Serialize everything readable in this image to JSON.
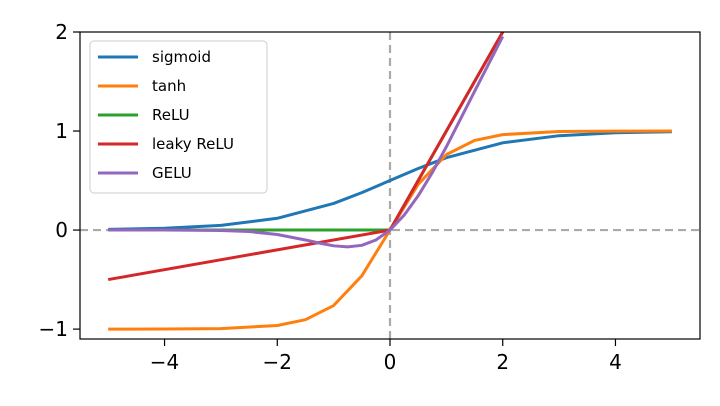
{
  "chart_data": {
    "type": "line",
    "xlim": [
      -5.5,
      5.5
    ],
    "ylim": [
      -1.1,
      2.0
    ],
    "x_ticks": [
      -4,
      -2,
      0,
      2,
      4
    ],
    "x_tick_labels": [
      "−4",
      "−2",
      "0",
      "2",
      "4"
    ],
    "y_ticks": [
      -1,
      0,
      1,
      2
    ],
    "y_tick_labels": [
      "−1",
      "0",
      "1",
      "2"
    ],
    "grid": false,
    "legend_position": "top-left",
    "reference_lines": [
      {
        "orientation": "horizontal",
        "value": 0,
        "style": "dashed",
        "color": "#aaaaaa"
      },
      {
        "orientation": "vertical",
        "value": 0,
        "style": "dashed",
        "color": "#aaaaaa"
      }
    ],
    "series": [
      {
        "name": "sigmoid",
        "color": "#1f77b4",
        "x": [
          -5,
          -4,
          -3,
          -2,
          -1,
          -0.5,
          0,
          0.5,
          1,
          2,
          3,
          4,
          5
        ],
        "y": [
          0.007,
          0.018,
          0.047,
          0.119,
          0.269,
          0.378,
          0.5,
          0.622,
          0.731,
          0.881,
          0.953,
          0.982,
          0.993
        ]
      },
      {
        "name": "tanh",
        "color": "#ff7f0e",
        "x": [
          -5,
          -4,
          -3,
          -2,
          -1.5,
          -1,
          -0.5,
          0,
          0.5,
          1,
          1.5,
          2,
          3,
          4,
          5
        ],
        "y": [
          -1.0,
          -0.999,
          -0.995,
          -0.964,
          -0.905,
          -0.762,
          -0.462,
          0,
          0.462,
          0.762,
          0.905,
          0.964,
          0.995,
          0.999,
          1.0
        ]
      },
      {
        "name": "ReLU",
        "color": "#2ca02c",
        "x": [
          -5,
          0,
          2
        ],
        "y": [
          0,
          0,
          2
        ]
      },
      {
        "name": "leaky ReLU",
        "color": "#d62728",
        "x": [
          -5,
          0,
          2
        ],
        "y": [
          -0.5,
          0,
          2
        ]
      },
      {
        "name": "GELU",
        "color": "#9467bd",
        "x": [
          -5,
          -4,
          -3,
          -2.5,
          -2,
          -1.5,
          -1.25,
          -1,
          -0.75,
          -0.5,
          -0.25,
          0,
          0.25,
          0.5,
          0.75,
          1,
          1.5,
          2
        ],
        "y": [
          0,
          0,
          -0.004,
          -0.015,
          -0.045,
          -0.1,
          -0.132,
          -0.159,
          -0.17,
          -0.154,
          -0.1,
          0,
          0.15,
          0.346,
          0.58,
          0.841,
          1.4,
          1.955
        ]
      }
    ]
  }
}
